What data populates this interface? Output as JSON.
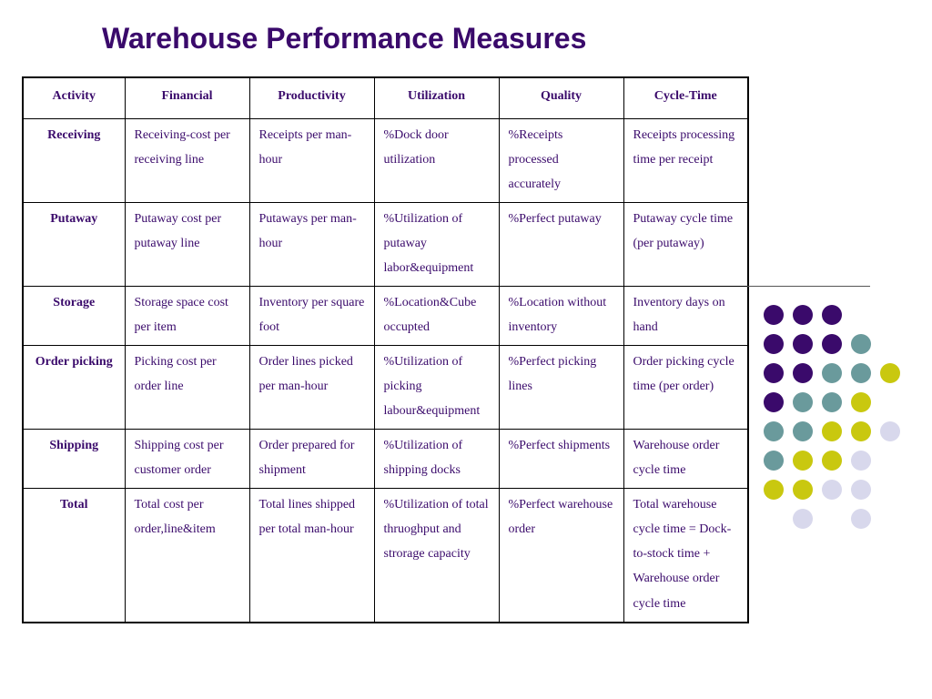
{
  "title": "Warehouse Performance Measures",
  "colors": {
    "text": "#3a0a6b",
    "dot_purple": "#3a0a6b",
    "dot_teal": "#6a9a9c",
    "dot_olive": "#c9c80f",
    "dot_lavender": "#d8d8ec"
  },
  "table": {
    "headers": [
      "Activity",
      "Financial",
      "Productivity",
      "Utilization",
      "Quality",
      "Cycle-Time"
    ],
    "rows": [
      {
        "activity": "Receiving",
        "cells": [
          "Receiving-cost per receiving line",
          "Receipts per  man-hour",
          "%Dock door utilization",
          "%Receipts processed accurately",
          "Receipts processing time per receipt"
        ]
      },
      {
        "activity": "Putaway",
        "cells": [
          "Putaway cost per putaway line",
          "Putaways per man-hour",
          "%Utilization of putaway labor&equipment",
          "%Perfect putaway",
          "Putaway cycle time (per putaway)"
        ]
      },
      {
        "activity": "Storage",
        "cells": [
          "Storage space cost per item",
          "Inventory per square foot",
          "%Location&Cube occupted",
          "%Location without inventory",
          "Inventory days on hand"
        ]
      },
      {
        "activity": "Order picking",
        "cells": [
          "Picking cost per order line",
          "Order lines picked per man-hour",
          "%Utilization of picking labour&equipment",
          "%Perfect picking lines",
          "Order picking cycle time (per order)"
        ]
      },
      {
        "activity": "Shipping",
        "cells": [
          "Shipping cost per customer order",
          "Order prepared for shipment",
          "%Utilization of shipping docks",
          "%Perfect shipments",
          "Warehouse order cycle time"
        ]
      },
      {
        "activity": "Total",
        "cells": [
          "Total cost per order,line&item",
          "Total lines shipped per total man-hour",
          "%Utilization of total thruoghput and strorage capacity",
          "%Perfect warehouse order",
          "Total warehouse cycle time = Dock-to-stock time + Warehouse order cycle time"
        ]
      }
    ]
  },
  "decoration": {
    "dot_grid": [
      [
        "P",
        "P",
        "P",
        null,
        null
      ],
      [
        "P",
        "P",
        "P",
        "T",
        null
      ],
      [
        "P",
        "P",
        "T",
        "T",
        "O"
      ],
      [
        "P",
        "T",
        "T",
        "O",
        null
      ],
      [
        "T",
        "T",
        "O",
        "O",
        "L"
      ],
      [
        "T",
        "O",
        "O",
        "L",
        null
      ],
      [
        "O",
        "O",
        "L",
        "L",
        null
      ],
      [
        null,
        "L",
        null,
        "L",
        null
      ]
    ]
  }
}
